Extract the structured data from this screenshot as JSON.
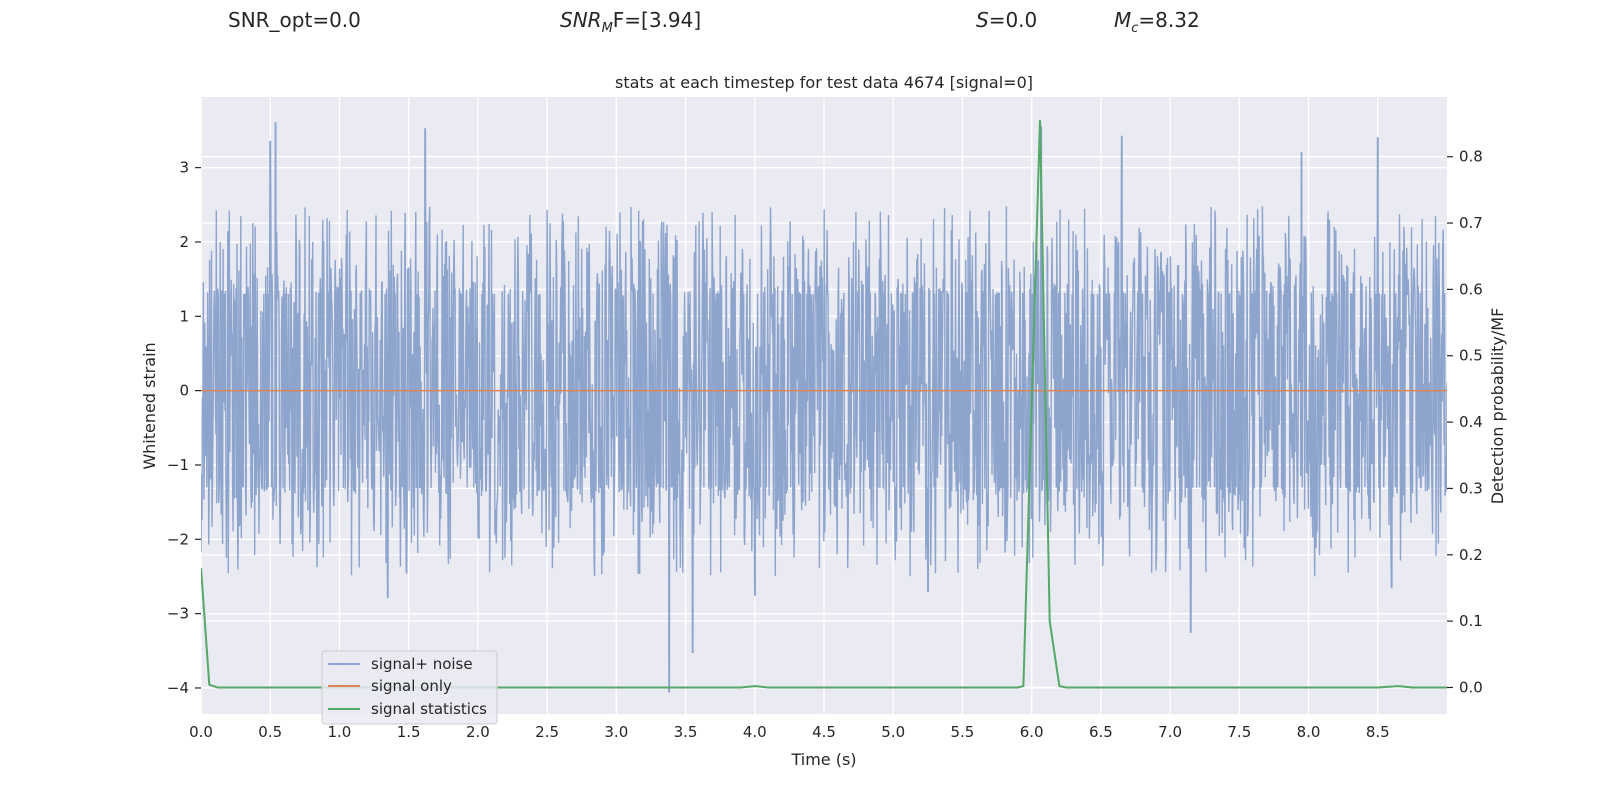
{
  "header": {
    "snr_opt": "SNR_opt=0.0",
    "snr_mf_main": "SNR",
    "snr_mf_sub": "M",
    "snr_mf_rest": "F=[3.94]",
    "s_var": "S",
    "s_rest": "=0.0",
    "mc_var": "M",
    "mc_sub": "c",
    "mc_rest": "=8.32"
  },
  "chart_data": {
    "type": "line",
    "title": "stats at each timestep for test data 4674 [signal=0]",
    "xlabel": "Time (s)",
    "ylabel": "Whitened strain",
    "ylabel_right": "Detection probability/MF",
    "xlim": [
      0,
      9
    ],
    "ylim": [
      -4.35,
      3.95
    ],
    "ylim_right": [
      -0.04,
      0.89
    ],
    "x_ticks": [
      "0.0",
      "0.5",
      "1.0",
      "1.5",
      "2.0",
      "2.5",
      "3.0",
      "3.5",
      "4.0",
      "4.5",
      "5.0",
      "5.5",
      "6.0",
      "6.5",
      "7.0",
      "7.5",
      "8.0",
      "8.5"
    ],
    "y_ticks": [
      "3",
      "2",
      "1",
      "0",
      "−1",
      "−2",
      "−3",
      "−4"
    ],
    "y_ticks_right": [
      "0.8",
      "0.7",
      "0.6",
      "0.5",
      "0.4",
      "0.3",
      "0.2",
      "0.1",
      "0.0"
    ],
    "grid": true,
    "legend_position": "lower-left",
    "series": [
      {
        "name": "signal+ noise",
        "color": "#8da4cd",
        "axis": "left",
        "sample_rate_hz": 2048,
        "envelope_upper": 1.3,
        "envelope_lower": -1.3,
        "peaks": [
          [
            0.5,
            3.35
          ],
          [
            0.54,
            3.6
          ],
          [
            1.62,
            3.52
          ],
          [
            6.07,
            3.55
          ],
          [
            6.65,
            3.42
          ],
          [
            8.5,
            3.4
          ],
          [
            7.95,
            3.2
          ]
        ],
        "troughs": [
          [
            3.38,
            -4.05
          ],
          [
            3.55,
            -3.52
          ],
          [
            1.35,
            -2.78
          ],
          [
            7.15,
            -3.25
          ],
          [
            4.0,
            -2.75
          ],
          [
            5.25,
            -2.7
          ],
          [
            8.6,
            -2.65
          ]
        ]
      },
      {
        "name": "signal only",
        "color": "#dd8452",
        "axis": "left",
        "x": [
          0,
          9
        ],
        "y": [
          0,
          0
        ]
      },
      {
        "name": "signal statistics",
        "color": "#55a868",
        "axis": "right",
        "x": [
          0,
          0.06,
          0.12,
          1,
          2,
          3,
          3.9,
          4.0,
          4.1,
          5,
          5.9,
          5.94,
          6.06,
          6.13,
          6.2,
          6.25,
          7,
          8,
          8.5,
          8.65,
          8.75,
          9
        ],
        "y": [
          0.18,
          0.004,
          0.0,
          0.0,
          0.0,
          0.0,
          0.0,
          0.002,
          0.0,
          0.0,
          0.0,
          0.002,
          0.855,
          0.1,
          0.002,
          0.0,
          0.0,
          0.0,
          0.0,
          0.002,
          0.0,
          0.0
        ]
      }
    ]
  }
}
